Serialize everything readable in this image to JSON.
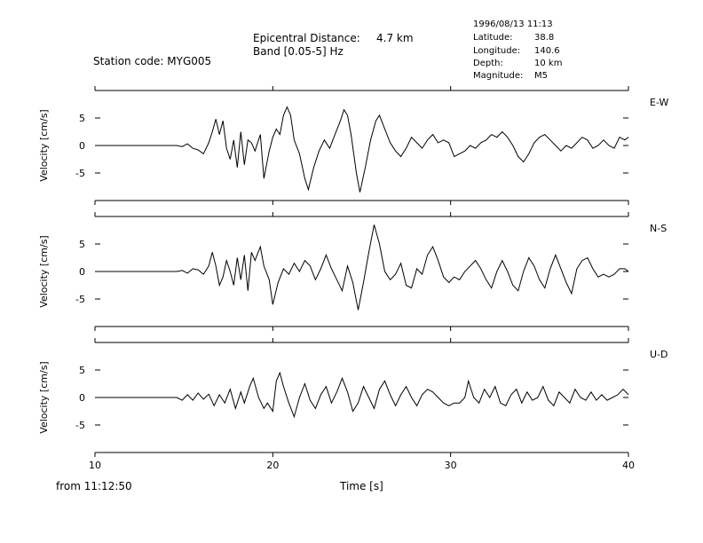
{
  "header": {
    "station": "Station code: MYG005",
    "epicentral_label": "Epicentral Distance:",
    "epicentral_value": "4.7 km",
    "band": "Band [0.05-5] Hz",
    "event_time": "1996/08/13 11:13",
    "latitude_label": "Latitude:",
    "latitude_value": "38.8",
    "longitude_label": "Longitude:",
    "longitude_value": "140.6",
    "depth_label": "Depth:",
    "depth_value": "10 km",
    "magnitude_label": "Magnitude:",
    "magnitude_value": "M5"
  },
  "footer": {
    "start_time": "from 11:12:50",
    "xlabel": "Time [s]"
  },
  "chart_data": {
    "type": "line",
    "x_range": [
      10,
      40
    ],
    "x_ticks": [
      10,
      20,
      30,
      40
    ],
    "ylim": [
      -10,
      10
    ],
    "y_ticks": [
      5,
      0,
      -5
    ],
    "ylabel": "Velocity [cm/s]",
    "grid": false,
    "series": [
      {
        "name": "E-W",
        "points": [
          [
            10,
            0
          ],
          [
            14.6,
            0
          ],
          [
            14.9,
            -0.2
          ],
          [
            15.2,
            0.3
          ],
          [
            15.5,
            -0.5
          ],
          [
            15.8,
            -0.8
          ],
          [
            16.1,
            -1.5
          ],
          [
            16.4,
            0.5
          ],
          [
            16.6,
            2.5
          ],
          [
            16.8,
            4.8
          ],
          [
            17.0,
            2.0
          ],
          [
            17.2,
            4.5
          ],
          [
            17.4,
            -0.5
          ],
          [
            17.6,
            -2.5
          ],
          [
            17.8,
            1.0
          ],
          [
            18.0,
            -4.0
          ],
          [
            18.2,
            2.5
          ],
          [
            18.4,
            -3.5
          ],
          [
            18.6,
            1.0
          ],
          [
            18.8,
            0.5
          ],
          [
            19.0,
            -1.0
          ],
          [
            19.3,
            2.0
          ],
          [
            19.5,
            -6.0
          ],
          [
            19.8,
            -1.0
          ],
          [
            20.0,
            1.5
          ],
          [
            20.2,
            3.0
          ],
          [
            20.4,
            2.0
          ],
          [
            20.6,
            5.5
          ],
          [
            20.8,
            7.0
          ],
          [
            21.0,
            5.5
          ],
          [
            21.2,
            1.0
          ],
          [
            21.5,
            -1.5
          ],
          [
            21.8,
            -6.0
          ],
          [
            22.0,
            -8.0
          ],
          [
            22.3,
            -4.0
          ],
          [
            22.6,
            -1.0
          ],
          [
            22.9,
            1.0
          ],
          [
            23.2,
            -0.5
          ],
          [
            23.5,
            2.0
          ],
          [
            23.8,
            4.5
          ],
          [
            24.0,
            6.5
          ],
          [
            24.2,
            5.5
          ],
          [
            24.4,
            2.0
          ],
          [
            24.7,
            -5.0
          ],
          [
            24.9,
            -8.5
          ],
          [
            25.2,
            -4.0
          ],
          [
            25.5,
            1.0
          ],
          [
            25.8,
            4.5
          ],
          [
            26.0,
            5.5
          ],
          [
            26.3,
            3.0
          ],
          [
            26.6,
            0.5
          ],
          [
            26.9,
            -1.0
          ],
          [
            27.2,
            -2.0
          ],
          [
            27.5,
            -0.5
          ],
          [
            27.8,
            1.5
          ],
          [
            28.1,
            0.5
          ],
          [
            28.4,
            -0.5
          ],
          [
            28.7,
            1.0
          ],
          [
            29.0,
            2.0
          ],
          [
            29.3,
            0.5
          ],
          [
            29.6,
            1.0
          ],
          [
            29.9,
            0.5
          ],
          [
            30.2,
            -2.0
          ],
          [
            30.5,
            -1.5
          ],
          [
            30.8,
            -1.0
          ],
          [
            31.1,
            0.0
          ],
          [
            31.4,
            -0.5
          ],
          [
            31.7,
            0.5
          ],
          [
            32.0,
            1.0
          ],
          [
            32.3,
            2.0
          ],
          [
            32.6,
            1.5
          ],
          [
            32.9,
            2.5
          ],
          [
            33.2,
            1.5
          ],
          [
            33.5,
            0.0
          ],
          [
            33.8,
            -2.0
          ],
          [
            34.1,
            -3.0
          ],
          [
            34.4,
            -1.5
          ],
          [
            34.7,
            0.5
          ],
          [
            35.0,
            1.5
          ],
          [
            35.3,
            2.0
          ],
          [
            35.6,
            1.0
          ],
          [
            35.9,
            0.0
          ],
          [
            36.2,
            -1.0
          ],
          [
            36.5,
            0.0
          ],
          [
            36.8,
            -0.5
          ],
          [
            37.1,
            0.5
          ],
          [
            37.4,
            1.5
          ],
          [
            37.7,
            1.0
          ],
          [
            38.0,
            -0.5
          ],
          [
            38.3,
            0.0
          ],
          [
            38.6,
            1.0
          ],
          [
            38.9,
            0.0
          ],
          [
            39.2,
            -0.5
          ],
          [
            39.5,
            1.5
          ],
          [
            39.8,
            1.0
          ],
          [
            40.0,
            1.5
          ]
        ]
      },
      {
        "name": "N-S",
        "points": [
          [
            10,
            0
          ],
          [
            14.6,
            0
          ],
          [
            14.9,
            0.2
          ],
          [
            15.2,
            -0.3
          ],
          [
            15.5,
            0.5
          ],
          [
            15.8,
            0.3
          ],
          [
            16.1,
            -0.5
          ],
          [
            16.4,
            1.0
          ],
          [
            16.6,
            3.5
          ],
          [
            16.8,
            1.0
          ],
          [
            17.0,
            -2.5
          ],
          [
            17.2,
            -1.0
          ],
          [
            17.4,
            2.0
          ],
          [
            17.6,
            0.0
          ],
          [
            17.8,
            -2.5
          ],
          [
            18.0,
            2.5
          ],
          [
            18.2,
            -1.5
          ],
          [
            18.4,
            3.0
          ],
          [
            18.6,
            -3.5
          ],
          [
            18.8,
            3.5
          ],
          [
            19.0,
            2.0
          ],
          [
            19.3,
            4.5
          ],
          [
            19.5,
            1.0
          ],
          [
            19.8,
            -1.5
          ],
          [
            20.0,
            -6.0
          ],
          [
            20.3,
            -2.0
          ],
          [
            20.6,
            0.5
          ],
          [
            20.9,
            -0.5
          ],
          [
            21.2,
            1.5
          ],
          [
            21.5,
            0.0
          ],
          [
            21.8,
            2.0
          ],
          [
            22.1,
            1.0
          ],
          [
            22.4,
            -1.5
          ],
          [
            22.7,
            0.5
          ],
          [
            23.0,
            3.0
          ],
          [
            23.3,
            0.5
          ],
          [
            23.6,
            -1.5
          ],
          [
            23.9,
            -3.5
          ],
          [
            24.2,
            1.0
          ],
          [
            24.5,
            -2.0
          ],
          [
            24.8,
            -7.0
          ],
          [
            25.1,
            -2.0
          ],
          [
            25.4,
            3.5
          ],
          [
            25.7,
            8.5
          ],
          [
            26.0,
            5.0
          ],
          [
            26.3,
            0.0
          ],
          [
            26.6,
            -1.5
          ],
          [
            26.9,
            -0.5
          ],
          [
            27.2,
            1.5
          ],
          [
            27.5,
            -2.5
          ],
          [
            27.8,
            -3.0
          ],
          [
            28.1,
            0.5
          ],
          [
            28.4,
            -0.5
          ],
          [
            28.7,
            3.0
          ],
          [
            29.0,
            4.5
          ],
          [
            29.3,
            2.0
          ],
          [
            29.6,
            -1.0
          ],
          [
            29.9,
            -2.0
          ],
          [
            30.2,
            -1.0
          ],
          [
            30.5,
            -1.5
          ],
          [
            30.8,
            0.0
          ],
          [
            31.1,
            1.0
          ],
          [
            31.4,
            2.0
          ],
          [
            31.7,
            0.5
          ],
          [
            32.0,
            -1.5
          ],
          [
            32.3,
            -3.0
          ],
          [
            32.6,
            0.0
          ],
          [
            32.9,
            2.0
          ],
          [
            33.2,
            0.0
          ],
          [
            33.5,
            -2.5
          ],
          [
            33.8,
            -3.5
          ],
          [
            34.1,
            0.0
          ],
          [
            34.4,
            2.5
          ],
          [
            34.7,
            1.0
          ],
          [
            35.0,
            -1.5
          ],
          [
            35.3,
            -3.0
          ],
          [
            35.6,
            0.5
          ],
          [
            35.9,
            3.0
          ],
          [
            36.2,
            0.5
          ],
          [
            36.5,
            -2.0
          ],
          [
            36.8,
            -4.0
          ],
          [
            37.1,
            0.5
          ],
          [
            37.4,
            2.0
          ],
          [
            37.7,
            2.5
          ],
          [
            38.0,
            0.5
          ],
          [
            38.3,
            -1.0
          ],
          [
            38.6,
            -0.5
          ],
          [
            38.9,
            -1.0
          ],
          [
            39.2,
            -0.5
          ],
          [
            39.5,
            0.5
          ],
          [
            39.8,
            0.5
          ],
          [
            40.0,
            0.0
          ]
        ]
      },
      {
        "name": "U-D",
        "points": [
          [
            10,
            0
          ],
          [
            14.6,
            0
          ],
          [
            14.9,
            -0.5
          ],
          [
            15.2,
            0.5
          ],
          [
            15.5,
            -0.5
          ],
          [
            15.8,
            0.8
          ],
          [
            16.1,
            -0.3
          ],
          [
            16.4,
            0.6
          ],
          [
            16.7,
            -1.5
          ],
          [
            17.0,
            0.5
          ],
          [
            17.3,
            -1.0
          ],
          [
            17.6,
            1.5
          ],
          [
            17.9,
            -2.0
          ],
          [
            18.2,
            1.0
          ],
          [
            18.4,
            -1.0
          ],
          [
            18.7,
            2.0
          ],
          [
            18.9,
            3.5
          ],
          [
            19.2,
            0.0
          ],
          [
            19.5,
            -2.0
          ],
          [
            19.7,
            -1.0
          ],
          [
            20.0,
            -2.5
          ],
          [
            20.2,
            3.0
          ],
          [
            20.4,
            4.5
          ],
          [
            20.6,
            2.0
          ],
          [
            20.9,
            -1.0
          ],
          [
            21.2,
            -3.5
          ],
          [
            21.5,
            0.0
          ],
          [
            21.8,
            2.5
          ],
          [
            22.1,
            -0.5
          ],
          [
            22.4,
            -2.0
          ],
          [
            22.7,
            0.5
          ],
          [
            23.0,
            2.0
          ],
          [
            23.3,
            -1.0
          ],
          [
            23.6,
            1.0
          ],
          [
            23.9,
            3.5
          ],
          [
            24.2,
            1.0
          ],
          [
            24.5,
            -2.5
          ],
          [
            24.8,
            -1.0
          ],
          [
            25.1,
            2.0
          ],
          [
            25.4,
            0.0
          ],
          [
            25.7,
            -2.0
          ],
          [
            26.0,
            1.5
          ],
          [
            26.3,
            3.0
          ],
          [
            26.6,
            0.5
          ],
          [
            26.9,
            -1.5
          ],
          [
            27.2,
            0.5
          ],
          [
            27.5,
            2.0
          ],
          [
            27.8,
            0.0
          ],
          [
            28.1,
            -1.5
          ],
          [
            28.4,
            0.5
          ],
          [
            28.7,
            1.5
          ],
          [
            29.0,
            1.0
          ],
          [
            29.3,
            0.0
          ],
          [
            29.6,
            -1.0
          ],
          [
            29.9,
            -1.5
          ],
          [
            30.2,
            -1.0
          ],
          [
            30.5,
            -1.0
          ],
          [
            30.8,
            0.0
          ],
          [
            31.0,
            3.0
          ],
          [
            31.3,
            0.0
          ],
          [
            31.6,
            -1.0
          ],
          [
            31.9,
            1.5
          ],
          [
            32.2,
            0.0
          ],
          [
            32.5,
            2.0
          ],
          [
            32.8,
            -1.0
          ],
          [
            33.1,
            -1.5
          ],
          [
            33.4,
            0.5
          ],
          [
            33.7,
            1.5
          ],
          [
            34.0,
            -1.0
          ],
          [
            34.3,
            1.0
          ],
          [
            34.6,
            -0.5
          ],
          [
            34.9,
            0.0
          ],
          [
            35.2,
            2.0
          ],
          [
            35.5,
            -0.5
          ],
          [
            35.8,
            -1.5
          ],
          [
            36.1,
            1.0
          ],
          [
            36.4,
            0.0
          ],
          [
            36.7,
            -1.0
          ],
          [
            37.0,
            1.5
          ],
          [
            37.3,
            0.0
          ],
          [
            37.6,
            -0.5
          ],
          [
            37.9,
            1.0
          ],
          [
            38.2,
            -0.5
          ],
          [
            38.5,
            0.5
          ],
          [
            38.8,
            -0.5
          ],
          [
            39.1,
            0.0
          ],
          [
            39.4,
            0.5
          ],
          [
            39.7,
            1.5
          ],
          [
            40.0,
            0.5
          ]
        ]
      }
    ]
  }
}
